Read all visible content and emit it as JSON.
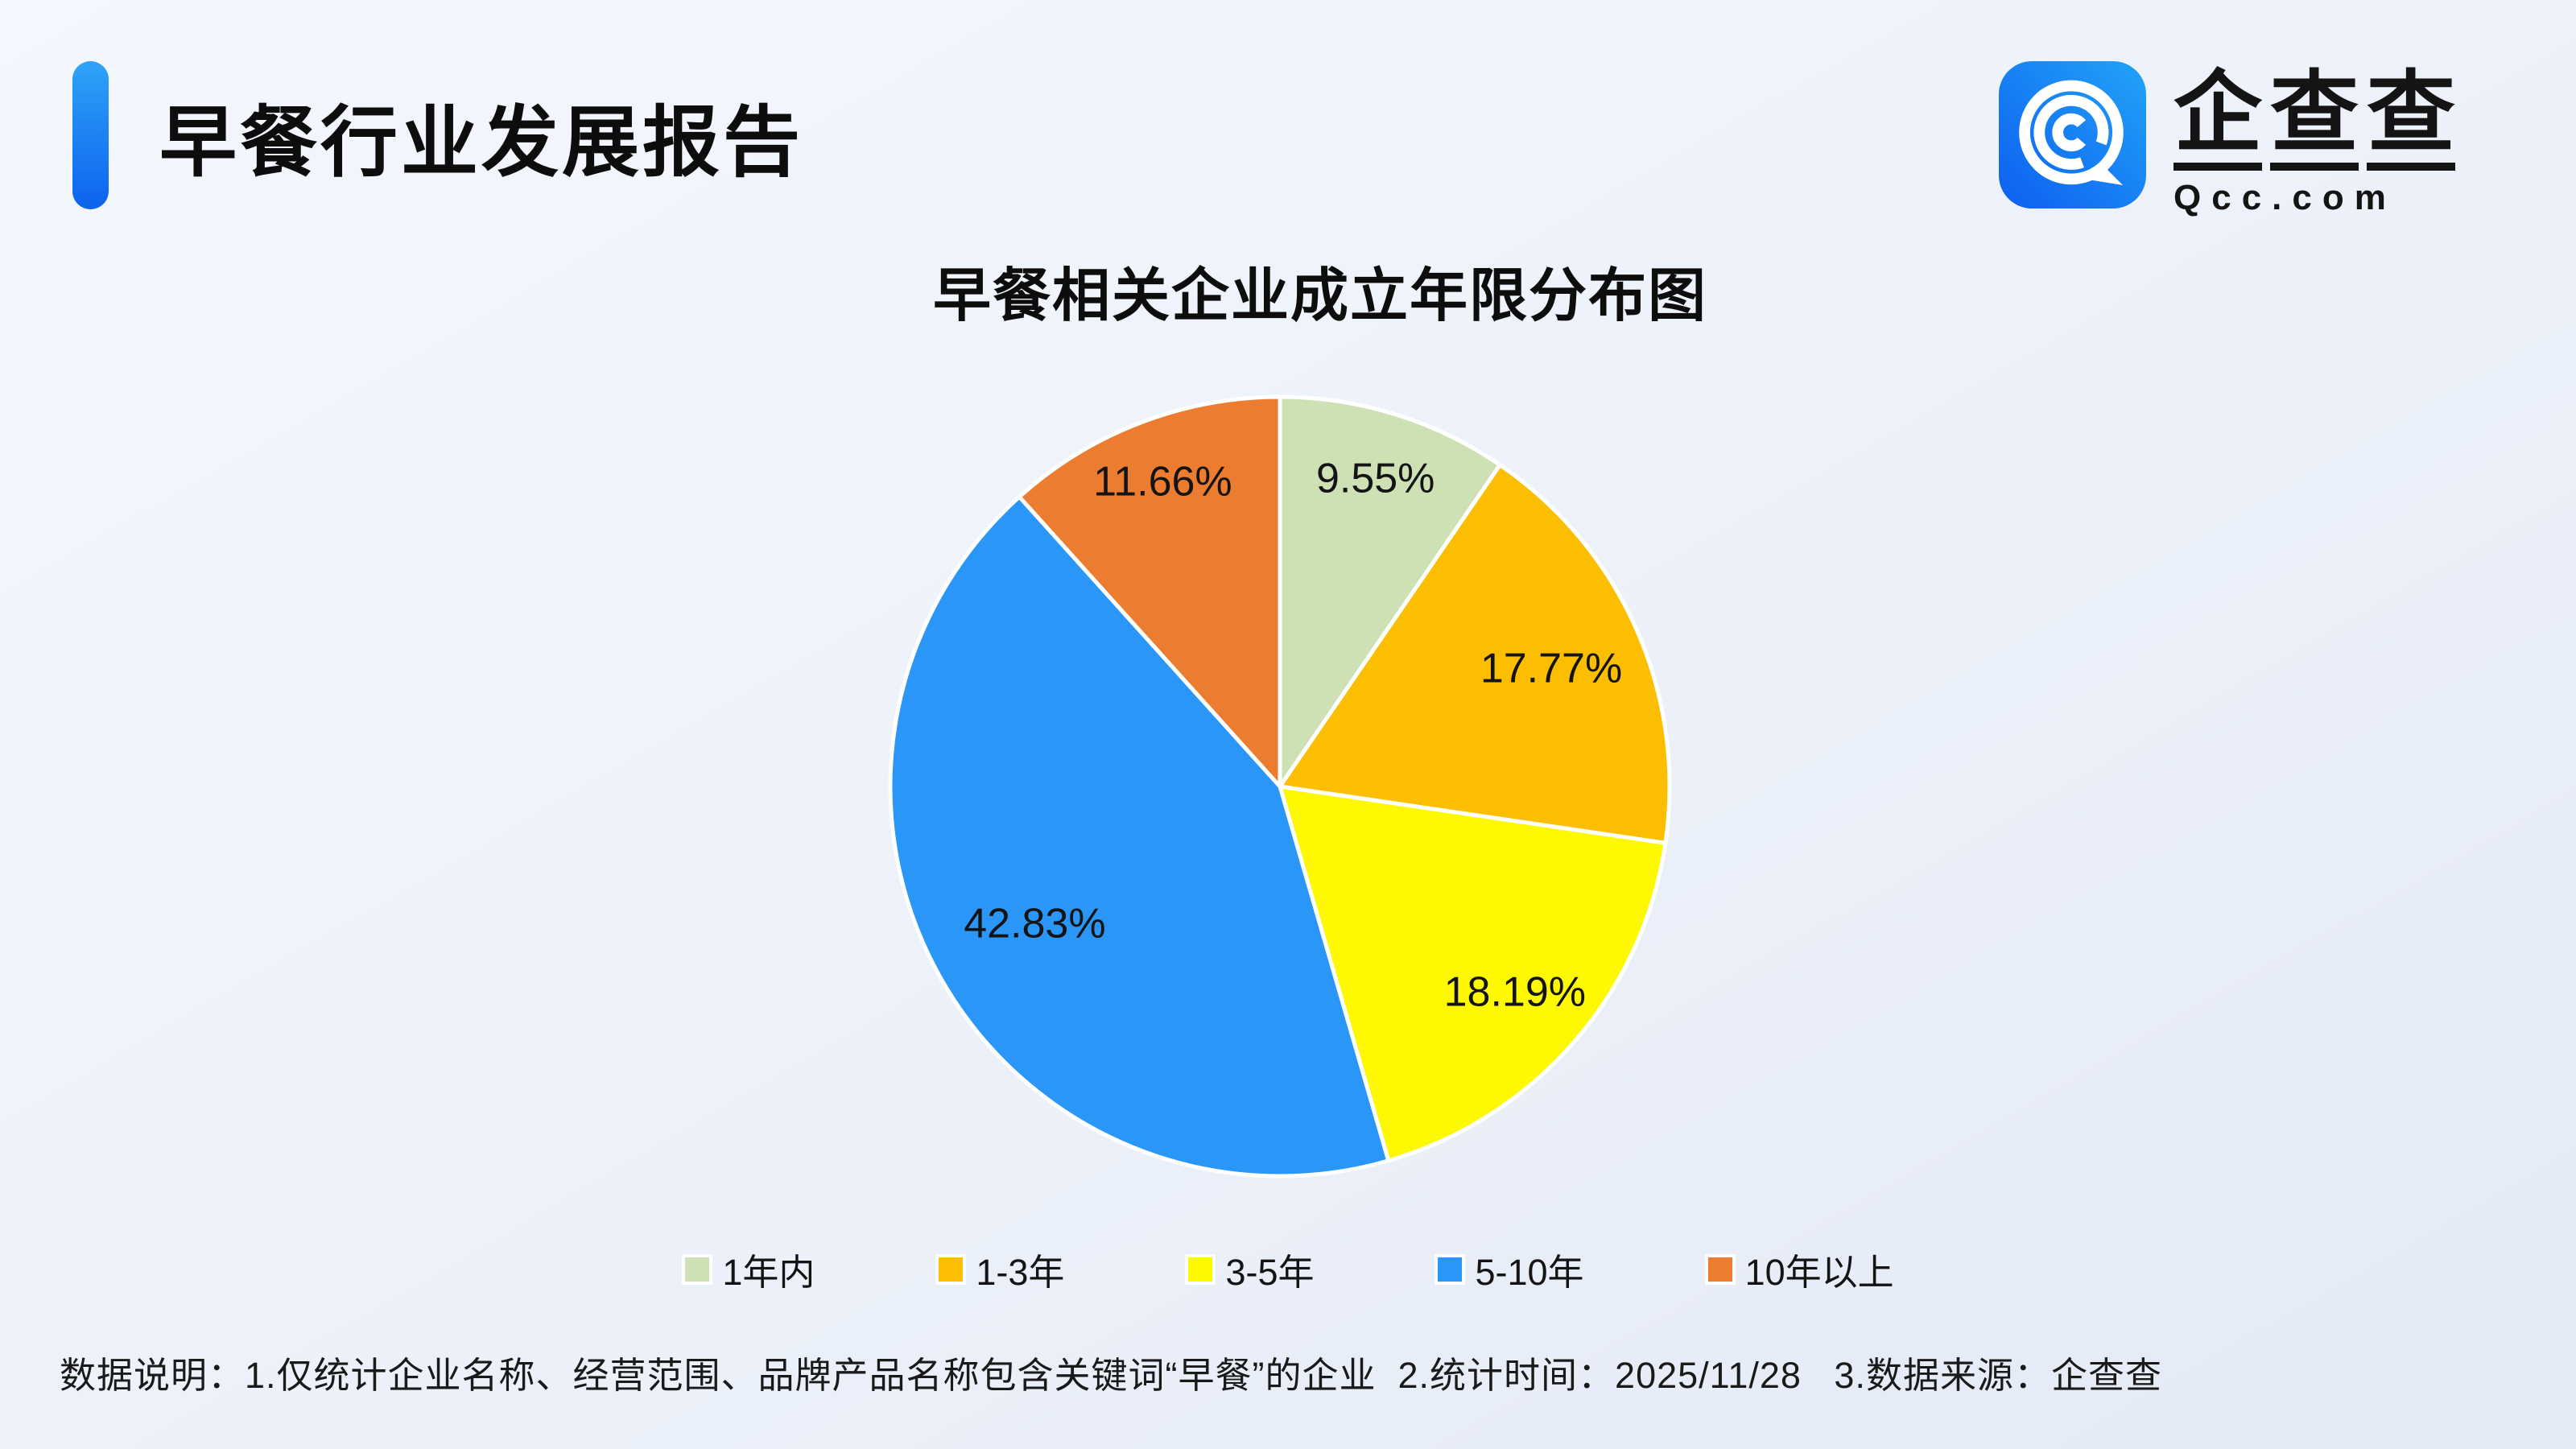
{
  "page": {
    "background_top": "#f4f7fd",
    "background_bottom": "#e3eaf6"
  },
  "header": {
    "title": "早餐行业发展报告",
    "accent_bar_colors": [
      "#2fa3f7",
      "#0c63ee"
    ]
  },
  "logo": {
    "icon": "qcc-magnifier-icon",
    "icon_gradient": [
      "#0d5ff0",
      "#22a3f8"
    ],
    "brand_chars": [
      "企",
      "查",
      "查"
    ],
    "domain": "Qcc.com"
  },
  "chart_data": {
    "type": "pie",
    "title": "早餐相关企业成立年限分布图",
    "unit": "%",
    "label_position": "inside",
    "legend_position": "bottom",
    "start_angle": "12-oclock, clockwise",
    "slice_border_color": "#ffffff",
    "series": [
      {
        "label": "1年内",
        "value": 9.55,
        "display": "9.55%",
        "color": "#CDE1B5"
      },
      {
        "label": "1-3年",
        "value": 17.77,
        "display": "17.77%",
        "color": "#FCBE00"
      },
      {
        "label": "3-5年",
        "value": 18.19,
        "display": "18.19%",
        "color": "#FEF900"
      },
      {
        "label": "5-10年",
        "value": 42.83,
        "display": "42.83%",
        "color": "#2996F8"
      },
      {
        "label": "10年以上",
        "value": 11.66,
        "display": "11.66%",
        "color": "#EC7D30"
      }
    ]
  },
  "footer": {
    "note": "数据说明：1.仅统计企业名称、经营范围、品牌产品名称包含关键词“早餐”的企业  2.统计时间：2025/11/28   3.数据来源：企查查"
  }
}
